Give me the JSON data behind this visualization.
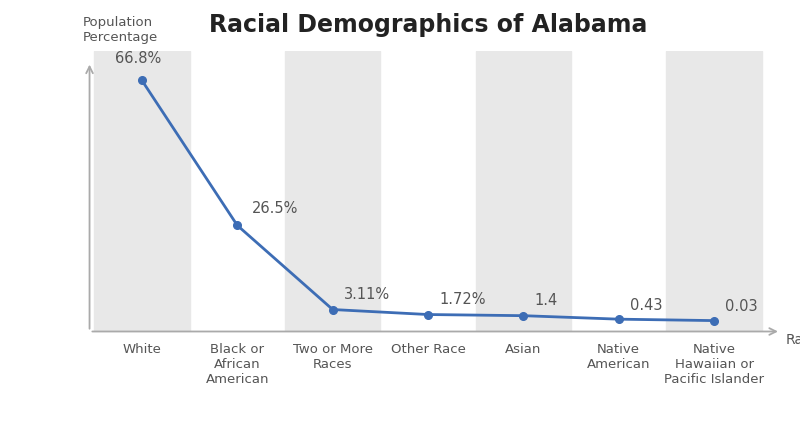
{
  "title": "Racial Demographics of Alabama",
  "title_fontsize": 17,
  "xlabel": "Race",
  "ylabel": "Population\nPercentage",
  "categories": [
    "White",
    "Black or\nAfrican\nAmerican",
    "Two or More\nRaces",
    "Other Race",
    "Asian",
    "Native\nAmerican",
    "Native\nHawaiian or\nPacific Islander"
  ],
  "values": [
    66.8,
    26.5,
    3.11,
    1.72,
    1.4,
    0.43,
    0.03
  ],
  "labels": [
    "66.8%",
    "26.5%",
    "3.11%",
    "1.72%",
    "1.4",
    "0.43",
    "0.03"
  ],
  "line_color": "#3d6db5",
  "marker_color": "#3d6db5",
  "bg_color": "#ffffff",
  "band_color": "#e8e8e8",
  "axis_color": "#aaaaaa",
  "label_color": "#555555",
  "title_color": "#222222",
  "ylim_min": -3,
  "ylim_max": 75
}
